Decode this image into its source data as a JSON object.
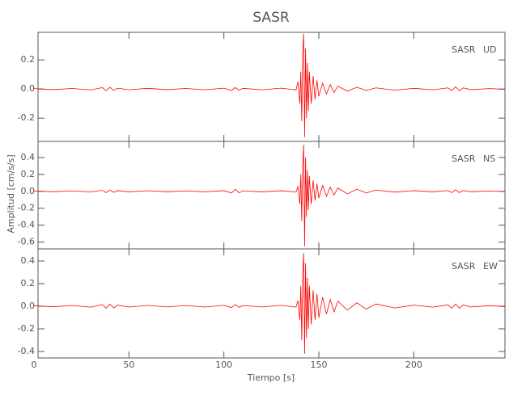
{
  "chart_data": {
    "type": "line",
    "title": "SASR",
    "xlabel": "Tiempo [s]",
    "ylabel": "Amplitud [cm/s/s]",
    "xlim": [
      0,
      248
    ],
    "xticks": [
      0,
      50,
      100,
      150,
      200
    ],
    "x": [
      0,
      10,
      20,
      30,
      36,
      38,
      40,
      42,
      44,
      50,
      60,
      70,
      80,
      90,
      100,
      104,
      106,
      108,
      110,
      120,
      130,
      138,
      139,
      140,
      140.5,
      141,
      141.5,
      142,
      142.5,
      143,
      143.5,
      144,
      144.5,
      145,
      146,
      147,
      148,
      149,
      150,
      152,
      154,
      156,
      158,
      160,
      165,
      170,
      175,
      180,
      190,
      200,
      210,
      218,
      220,
      222,
      224,
      226,
      230,
      240,
      248
    ],
    "panels": [
      {
        "station": "SASR",
        "component": "UD",
        "color": "#ff0000",
        "ylim": [
          -0.36,
          0.39
        ],
        "yticks": [
          -0.2,
          {
            "value": 0,
            "label": "0.0"
          },
          0.2
        ],
        "values": [
          0.003,
          -0.004,
          0.004,
          -0.006,
          0.01,
          -0.012,
          0.012,
          -0.01,
          0.006,
          -0.005,
          0.005,
          -0.004,
          0.004,
          -0.005,
          0.006,
          -0.01,
          0.01,
          -0.008,
          0.005,
          -0.005,
          0.006,
          -0.006,
          0.05,
          -0.1,
          0.12,
          -0.22,
          0.25,
          0.38,
          -0.33,
          0.28,
          -0.2,
          0.18,
          -0.15,
          0.12,
          -0.1,
          0.09,
          -0.07,
          0.06,
          -0.05,
          0.04,
          -0.035,
          0.03,
          -0.025,
          0.02,
          -0.015,
          0.012,
          -0.01,
          0.008,
          -0.008,
          0.005,
          -0.005,
          0.008,
          -0.012,
          0.015,
          -0.012,
          0.008,
          -0.004,
          0.003,
          -0.002
        ]
      },
      {
        "station": "SASR",
        "component": "NS",
        "color": "#ff0000",
        "ylim": [
          -0.68,
          0.59
        ],
        "yticks": [
          -0.6,
          -0.4,
          -0.2,
          {
            "value": 0,
            "label": "0.0"
          },
          0.2,
          0.4
        ],
        "values": [
          0.004,
          -0.005,
          0.005,
          -0.007,
          0.012,
          -0.015,
          0.015,
          -0.012,
          0.008,
          -0.006,
          0.006,
          -0.005,
          0.005,
          -0.006,
          0.008,
          -0.02,
          0.025,
          -0.018,
          0.006,
          -0.006,
          0.007,
          -0.008,
          0.06,
          -0.15,
          0.2,
          -0.35,
          0.3,
          0.55,
          -0.65,
          0.4,
          -0.3,
          0.25,
          -0.22,
          0.18,
          -0.15,
          0.13,
          -0.11,
          0.09,
          -0.08,
          0.07,
          -0.06,
          0.05,
          -0.045,
          0.04,
          -0.03,
          0.025,
          -0.02,
          0.015,
          -0.01,
          0.008,
          -0.006,
          0.01,
          -0.015,
          0.018,
          -0.015,
          0.01,
          -0.005,
          0.004,
          -0.003
        ]
      },
      {
        "station": "SASR",
        "component": "EW",
        "color": "#ff0000",
        "ylim": [
          -0.457,
          0.507
        ],
        "yticks": [
          -0.4,
          -0.2,
          {
            "value": 0,
            "label": "0.0"
          },
          0.2,
          0.4
        ],
        "values": [
          0.004,
          -0.005,
          0.006,
          -0.008,
          0.015,
          -0.018,
          0.018,
          -0.015,
          0.01,
          -0.007,
          0.007,
          -0.006,
          0.006,
          -0.007,
          0.008,
          -0.012,
          0.014,
          -0.01,
          0.006,
          -0.006,
          0.008,
          -0.008,
          0.05,
          -0.12,
          0.18,
          -0.3,
          0.28,
          0.47,
          -0.42,
          0.38,
          -0.28,
          0.25,
          -0.2,
          0.18,
          -0.16,
          0.14,
          -0.12,
          0.11,
          -0.1,
          0.08,
          -0.07,
          0.06,
          -0.05,
          0.045,
          -0.035,
          0.03,
          -0.025,
          0.02,
          -0.015,
          0.01,
          -0.008,
          0.012,
          -0.018,
          0.02,
          -0.018,
          0.012,
          -0.006,
          0.005,
          -0.003
        ]
      }
    ]
  }
}
